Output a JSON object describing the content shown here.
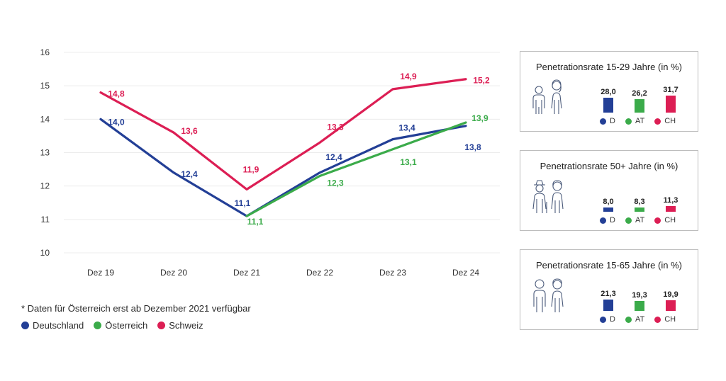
{
  "chart_data": [
    {
      "type": "line",
      "categories": [
        "Dez 19",
        "Dez 20",
        "Dez 21",
        "Dez 22",
        "Dez 23",
        "Dez 24"
      ],
      "ylim": [
        10,
        16
      ],
      "yticks": [
        "10",
        "11",
        "12",
        "13",
        "14",
        "15",
        "16"
      ],
      "grid": true,
      "series": [
        {
          "name": "Deutschland",
          "color": "#233f96",
          "values": [
            14.0,
            12.4,
            11.1,
            12.4,
            13.4,
            13.8
          ],
          "labels": [
            "14,0",
            "12,4",
            "11,1",
            "12,4",
            "13,4",
            "13,8"
          ]
        },
        {
          "name": "Österreich",
          "color": "#3bab4a",
          "values": [
            null,
            null,
            11.1,
            12.3,
            13.1,
            13.9
          ],
          "labels": [
            "",
            "",
            "11,1",
            "12,3",
            "13,1",
            "13,9"
          ]
        },
        {
          "name": "Schweiz",
          "color": "#dc1e54",
          "values": [
            14.8,
            13.6,
            11.9,
            13.3,
            14.9,
            15.2
          ],
          "labels": [
            "14,8",
            "13,6",
            "11,9",
            "13,3",
            "14,9",
            "15,2"
          ]
        }
      ],
      "footnote": "* Daten für Österreich erst ab Dezember 2021 verfügbar",
      "legend": "bottom-left"
    },
    {
      "type": "bar",
      "title": "Penetrationsrate 15-29 Jahre (in %)",
      "categories": [
        "D",
        "AT",
        "CH"
      ],
      "values": [
        28.0,
        26.2,
        31.7
      ],
      "labels": [
        "28,0",
        "26,2",
        "31,7"
      ]
    },
    {
      "type": "bar",
      "title": "Penetrationsrate 50+ Jahre (in %)",
      "categories": [
        "D",
        "AT",
        "CH"
      ],
      "values": [
        8.0,
        8.3,
        11.3
      ],
      "labels": [
        "8,0",
        "8,3",
        "11,3"
      ]
    },
    {
      "type": "bar",
      "title": "Penetrationsrate 15-65 Jahre (in %)",
      "categories": [
        "D",
        "AT",
        "CH"
      ],
      "values": [
        21.3,
        19.3,
        19.9
      ],
      "labels": [
        "21,3",
        "19,3",
        "19,9"
      ]
    }
  ],
  "colors": {
    "D": "#233f96",
    "AT": "#3bab4a",
    "CH": "#dc1e54"
  },
  "icons": [
    "youth-people-icon",
    "senior-people-icon",
    "adult-people-icon"
  ]
}
